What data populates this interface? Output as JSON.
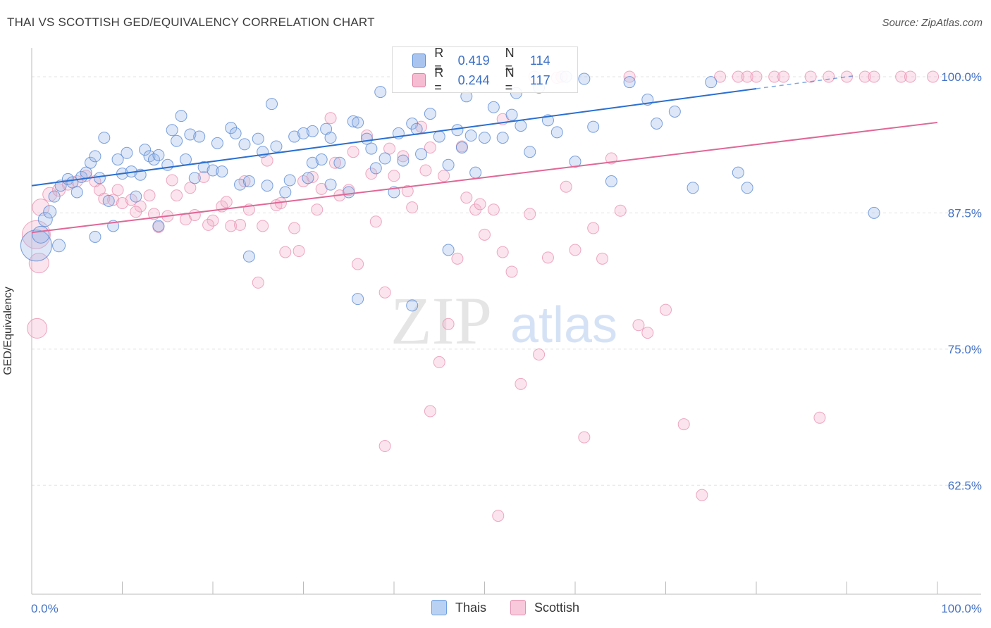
{
  "title": "THAI VS SCOTTISH GED/EQUIVALENCY CORRELATION CHART",
  "source": "Source: ZipAtlas.com",
  "watermark": {
    "zip": "ZIP",
    "atlas": "atlas"
  },
  "legend_top": [
    {
      "r_label": "R =",
      "r_value": "0.419",
      "n_label": "N =",
      "n_value": "114",
      "color": "#a9c4ee",
      "border": "#5b8fd6"
    },
    {
      "r_label": "R =",
      "r_value": "0.244",
      "n_label": "N =",
      "n_value": "117",
      "color": "#f6bcd1",
      "border": "#e07fa3"
    }
  ],
  "bottom_legend": [
    {
      "label": "Thais",
      "color": "#b9d1f3",
      "border": "#6f9fe0"
    },
    {
      "label": "Scottish",
      "color": "#f8c9da",
      "border": "#e592b1"
    }
  ],
  "colors": {
    "blue": "#4a80d3",
    "blue_line": "#2a6fd0",
    "pink": "#e57aa1",
    "pink_line": "#e06796",
    "axis_text": "#4472c4",
    "grid": "#e3e3e3"
  },
  "chart_data": {
    "type": "scatter",
    "title": "THAI VS SCOTTISH GED/EQUIVALENCY CORRELATION CHART",
    "xlabel": "",
    "ylabel": "GED/Equivalency",
    "x_ticks": [
      "0.0%",
      "100.0%"
    ],
    "y_ticks": [
      "100.0%",
      "87.5%",
      "75.0%",
      "62.5%"
    ],
    "y_tick_values": [
      100,
      87.5,
      75,
      62.5
    ],
    "xlim": [
      0,
      100
    ],
    "ylim": [
      52.5,
      102
    ],
    "grid": true,
    "legend": "bottom-center",
    "series": [
      {
        "name": "Thais",
        "color": "#4a80d3",
        "trend": {
          "x": [
            0,
            80
          ],
          "y": [
            90,
            98.9
          ],
          "dashed_extension_x": [
            80,
            91
          ],
          "dashed_extension_y": [
            98.9,
            100.1
          ]
        },
        "points": [
          [
            0.5,
            84.5,
            22
          ],
          [
            1,
            85.5,
            12
          ],
          [
            1.5,
            86.9,
            10
          ],
          [
            2,
            87.6,
            9
          ],
          [
            2.5,
            89,
            8
          ],
          [
            3,
            84.5,
            9
          ],
          [
            3.2,
            90,
            8
          ],
          [
            4,
            90.6,
            8
          ],
          [
            4.5,
            90.3,
            8
          ],
          [
            5,
            89.4,
            8
          ],
          [
            5.5,
            90.8,
            8
          ],
          [
            6,
            91.2,
            8
          ],
          [
            6.5,
            92.1,
            8
          ],
          [
            7,
            92.7,
            8
          ],
          [
            7.5,
            90.7,
            8
          ],
          [
            8,
            94.4,
            8
          ],
          [
            8.5,
            88.6,
            8
          ],
          [
            9,
            86.3,
            8
          ],
          [
            9.5,
            92.4,
            8
          ],
          [
            10,
            91.1,
            8
          ],
          [
            10.5,
            93,
            8
          ],
          [
            11,
            91.3,
            8
          ],
          [
            11.5,
            89,
            8
          ],
          [
            12,
            91,
            8
          ],
          [
            12.5,
            93.3,
            8
          ],
          [
            13,
            92.7,
            8
          ],
          [
            13.5,
            92.4,
            8
          ],
          [
            14,
            92.8,
            8
          ],
          [
            15,
            91.9,
            8
          ],
          [
            15.5,
            95.1,
            8
          ],
          [
            16,
            94.1,
            8
          ],
          [
            16.5,
            96.4,
            8
          ],
          [
            17,
            92.4,
            8
          ],
          [
            17.5,
            94.7,
            8
          ],
          [
            18,
            90.7,
            8
          ],
          [
            18.5,
            94.5,
            8
          ],
          [
            19,
            91.7,
            8
          ],
          [
            20,
            91.4,
            8
          ],
          [
            20.5,
            93.9,
            8
          ],
          [
            21,
            91.3,
            8
          ],
          [
            22,
            95.3,
            8
          ],
          [
            22.5,
            94.8,
            8
          ],
          [
            23,
            90.1,
            8
          ],
          [
            23.5,
            93.8,
            8
          ],
          [
            24,
            90.4,
            8
          ],
          [
            25,
            94.3,
            8
          ],
          [
            25.5,
            93.1,
            8
          ],
          [
            26,
            90,
            8
          ],
          [
            26.5,
            97.5,
            8
          ],
          [
            27,
            93.6,
            8
          ],
          [
            28,
            89.4,
            8
          ],
          [
            28.5,
            90.5,
            8
          ],
          [
            29,
            94.5,
            8
          ],
          [
            30,
            94.8,
            8
          ],
          [
            30.5,
            90.7,
            8
          ],
          [
            31,
            92.1,
            8
          ],
          [
            32,
            92.4,
            8
          ],
          [
            32.5,
            95.2,
            8
          ],
          [
            33,
            94.4,
            8
          ],
          [
            34,
            92.1,
            8
          ],
          [
            35,
            89.4,
            8
          ],
          [
            35.5,
            95.9,
            8
          ],
          [
            36,
            95.8,
            8
          ],
          [
            37,
            94.3,
            8
          ],
          [
            37.5,
            93.4,
            8
          ],
          [
            38,
            91.6,
            8
          ],
          [
            38.5,
            98.6,
            8
          ],
          [
            39,
            92.5,
            8
          ],
          [
            40,
            89.4,
            8
          ],
          [
            40.5,
            94.8,
            8
          ],
          [
            41,
            92.3,
            8
          ],
          [
            42,
            95.7,
            8
          ],
          [
            42.5,
            95.2,
            8
          ],
          [
            43,
            92.9,
            8
          ],
          [
            44,
            96.6,
            8
          ],
          [
            45,
            94.5,
            8
          ],
          [
            46,
            91.9,
            8
          ],
          [
            47,
            95.1,
            8
          ],
          [
            47.5,
            93.5,
            8
          ],
          [
            48,
            98.2,
            8
          ],
          [
            48.5,
            94.6,
            8
          ],
          [
            49,
            91.2,
            8
          ],
          [
            50,
            94.4,
            8
          ],
          [
            51,
            97.2,
            8
          ],
          [
            52,
            94.4,
            8
          ],
          [
            53,
            96.5,
            8
          ],
          [
            53.5,
            98.5,
            8
          ],
          [
            54,
            95.5,
            8
          ],
          [
            55,
            93.1,
            8
          ],
          [
            56,
            99,
            8
          ],
          [
            57,
            96,
            8
          ],
          [
            58,
            94.9,
            8
          ],
          [
            59,
            100,
            8
          ],
          [
            60,
            92.2,
            8
          ],
          [
            61,
            99.8,
            8
          ],
          [
            62,
            95.4,
            8
          ],
          [
            64,
            90.4,
            8
          ],
          [
            66,
            99.5,
            8
          ],
          [
            68,
            97.9,
            8
          ],
          [
            69,
            95.7,
            8
          ],
          [
            71,
            96.8,
            8
          ],
          [
            73,
            89.8,
            8
          ],
          [
            75,
            99.5,
            8
          ],
          [
            78,
            91.2,
            8
          ],
          [
            79,
            89.8,
            8
          ],
          [
            93,
            87.5,
            8
          ],
          [
            36,
            79.6,
            8
          ],
          [
            42,
            79,
            8
          ],
          [
            46,
            84.1,
            8
          ],
          [
            24,
            83.5,
            8
          ],
          [
            7,
            85.3,
            8
          ],
          [
            14,
            86.3,
            8
          ],
          [
            31,
            95,
            8
          ],
          [
            33,
            90.1,
            8
          ]
        ]
      },
      {
        "name": "Scottish",
        "color": "#e57aa1",
        "trend": {
          "x": [
            0,
            100
          ],
          "y": [
            85.7,
            95.8
          ]
        },
        "points": [
          [
            0.5,
            85.5,
            20
          ],
          [
            0.8,
            82.9,
            14
          ],
          [
            0.6,
            76.9,
            14
          ],
          [
            1,
            88,
            12
          ],
          [
            2,
            89.2,
            10
          ],
          [
            3,
            89.6,
            9
          ],
          [
            4,
            90.1,
            8
          ],
          [
            5,
            90.4,
            8
          ],
          [
            6,
            90.9,
            8
          ],
          [
            7,
            90.4,
            8
          ],
          [
            7.5,
            89.6,
            8
          ],
          [
            8,
            88.8,
            8
          ],
          [
            9,
            88.7,
            8
          ],
          [
            10,
            88.4,
            8
          ],
          [
            11,
            88.7,
            8
          ],
          [
            12,
            88.1,
            8
          ],
          [
            13,
            89.1,
            8
          ],
          [
            14,
            86.2,
            8
          ],
          [
            15,
            87.2,
            8
          ],
          [
            16,
            89.1,
            8
          ],
          [
            17,
            86.9,
            8
          ],
          [
            18,
            87.3,
            8
          ],
          [
            19,
            90.8,
            8
          ],
          [
            20,
            86.8,
            8
          ],
          [
            21,
            88.1,
            8
          ],
          [
            22,
            86.3,
            8
          ],
          [
            23,
            86.4,
            8
          ],
          [
            24,
            87.8,
            8
          ],
          [
            25,
            81.1,
            8
          ],
          [
            26,
            92.3,
            8
          ],
          [
            27,
            88.2,
            8
          ],
          [
            28,
            83.9,
            8
          ],
          [
            29,
            86.1,
            8
          ],
          [
            30,
            90.4,
            8
          ],
          [
            31,
            90.8,
            8
          ],
          [
            32,
            89.7,
            8
          ],
          [
            33,
            96.2,
            8
          ],
          [
            34,
            89.1,
            8
          ],
          [
            35,
            89.6,
            8
          ],
          [
            36,
            82.8,
            8
          ],
          [
            37,
            94.6,
            8
          ],
          [
            38,
            86.7,
            8
          ],
          [
            39,
            80.2,
            8
          ],
          [
            40,
            90.9,
            8
          ],
          [
            41,
            92.7,
            8
          ],
          [
            42,
            88,
            8
          ],
          [
            43,
            95.4,
            8
          ],
          [
            44,
            93.5,
            8
          ],
          [
            45,
            73.8,
            8
          ],
          [
            46,
            77.3,
            8
          ],
          [
            47,
            83.3,
            8
          ],
          [
            48,
            88.9,
            8
          ],
          [
            49,
            87.8,
            8
          ],
          [
            50,
            85.5,
            8
          ],
          [
            51,
            87.8,
            8
          ],
          [
            52,
            83.9,
            8
          ],
          [
            53,
            82.1,
            8
          ],
          [
            54,
            71.8,
            8
          ],
          [
            55,
            87.4,
            8
          ],
          [
            56,
            74.5,
            8
          ],
          [
            57,
            83.4,
            8
          ],
          [
            58,
            99.9,
            8
          ],
          [
            59,
            89.9,
            8
          ],
          [
            60,
            84.1,
            8
          ],
          [
            61,
            66.9,
            8
          ],
          [
            62,
            86.1,
            8
          ],
          [
            63,
            83.3,
            8
          ],
          [
            64,
            92.5,
            8
          ],
          [
            65,
            87.7,
            8
          ],
          [
            66,
            100,
            8
          ],
          [
            67,
            77.2,
            8
          ],
          [
            68,
            76.5,
            8
          ],
          [
            70,
            78.6,
            8
          ],
          [
            72,
            68.1,
            8
          ],
          [
            74,
            61.6,
            8
          ],
          [
            76,
            100,
            8
          ],
          [
            78,
            100,
            8
          ],
          [
            79,
            100,
            8
          ],
          [
            80,
            100,
            8
          ],
          [
            82,
            100,
            8
          ],
          [
            83,
            100,
            8
          ],
          [
            86,
            100,
            8
          ],
          [
            87,
            68.7,
            8
          ],
          [
            88,
            100,
            8
          ],
          [
            90,
            100,
            8
          ],
          [
            92,
            100,
            8
          ],
          [
            93,
            100,
            8
          ],
          [
            96,
            100,
            8
          ],
          [
            97,
            100,
            8
          ],
          [
            99.5,
            100,
            8
          ],
          [
            51.5,
            59.7,
            8
          ],
          [
            44,
            69.3,
            8
          ],
          [
            39,
            66.1,
            8
          ],
          [
            9.5,
            89.6,
            8
          ],
          [
            11.5,
            87.6,
            8
          ],
          [
            13.5,
            87.4,
            8
          ],
          [
            15.5,
            90.5,
            8
          ],
          [
            17.5,
            89.8,
            8
          ],
          [
            19.5,
            86.4,
            8
          ],
          [
            21.5,
            88.5,
            8
          ],
          [
            23.5,
            90.4,
            8
          ],
          [
            25.5,
            86.3,
            8
          ],
          [
            27.5,
            88.4,
            8
          ],
          [
            29.5,
            84,
            8
          ],
          [
            31.5,
            87.8,
            8
          ],
          [
            33.5,
            92.1,
            8
          ],
          [
            35.5,
            93.1,
            8
          ],
          [
            37.5,
            91.1,
            8
          ],
          [
            39.5,
            93.4,
            8
          ],
          [
            41.5,
            89.5,
            8
          ],
          [
            43.5,
            91.4,
            8
          ],
          [
            45.5,
            90.9,
            8
          ],
          [
            47.5,
            93.6,
            8
          ],
          [
            49.5,
            88.3,
            8
          ],
          [
            52,
            96.1,
            8
          ],
          [
            55.5,
            100,
            8
          ],
          [
            58.5,
            100,
            8
          ]
        ]
      }
    ]
  }
}
